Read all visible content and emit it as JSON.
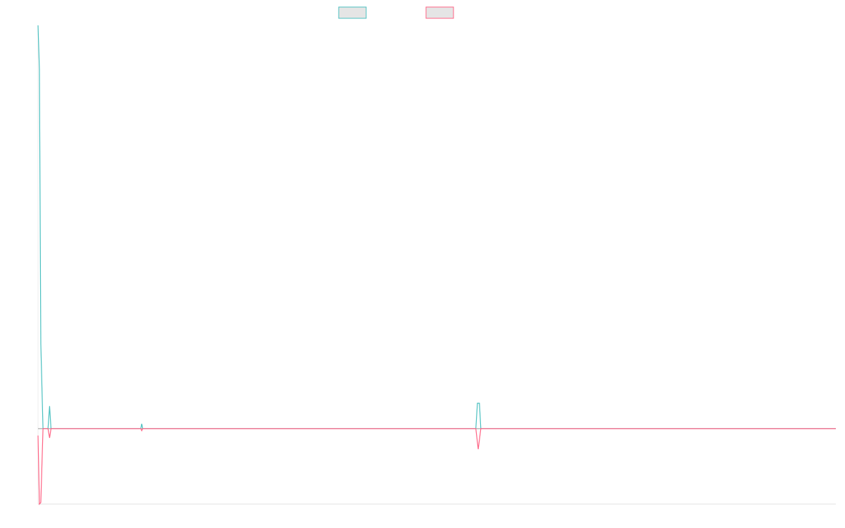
{
  "chart_data": {
    "type": "line",
    "title": "",
    "xlabel": "",
    "ylabel": "",
    "xlim": [
      0,
      400
    ],
    "ylim": [
      -18.7,
      100
    ],
    "grid": false,
    "legend_position": "top",
    "zero_line": true,
    "series": [
      {
        "color": "#4bc0c0",
        "points": [
          [
            0,
            100
          ],
          [
            0.7,
            89
          ],
          [
            1.4,
            21
          ],
          [
            2.5,
            0
          ],
          [
            5,
            0
          ],
          [
            5.8,
            5.6
          ],
          [
            6.5,
            0
          ],
          [
            51.5,
            0
          ],
          [
            52,
            1.2
          ],
          [
            52.5,
            0
          ],
          [
            219.5,
            0
          ],
          [
            220.3,
            6.3
          ],
          [
            221.3,
            6.3
          ],
          [
            222,
            0
          ],
          [
            400,
            0
          ]
        ]
      },
      {
        "color": "#ff6384",
        "points": [
          [
            0,
            -1.7
          ],
          [
            0.7,
            -18.7
          ],
          [
            1.4,
            -18.3
          ],
          [
            2.5,
            0
          ],
          [
            5,
            0
          ],
          [
            5.8,
            -2.3
          ],
          [
            6.5,
            0
          ],
          [
            51.5,
            0
          ],
          [
            52,
            -0.5
          ],
          [
            52.5,
            0
          ],
          [
            219.5,
            0
          ],
          [
            220.7,
            -5.1
          ],
          [
            222,
            0
          ],
          [
            400,
            0
          ]
        ]
      }
    ]
  }
}
